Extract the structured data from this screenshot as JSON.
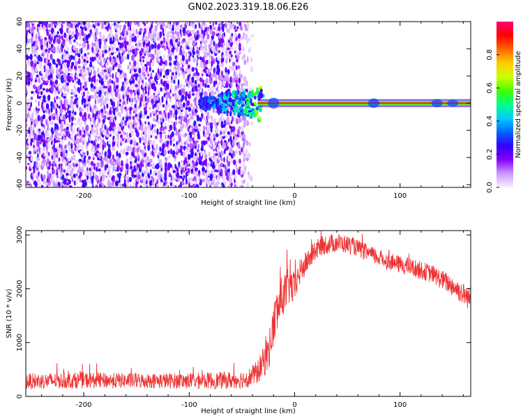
{
  "title": "GN02.2023.319.18.06.E26",
  "colors": {
    "snr_line": "#ee3333",
    "track": "#e01a1a",
    "axis": "#000000",
    "colorbar_stops": [
      "#f8f0ff",
      "#cc99ff",
      "#8800ff",
      "#3300ff",
      "#0066ff",
      "#00ccff",
      "#00ff88",
      "#44ff00",
      "#ccff00",
      "#ffcc00",
      "#ff6600",
      "#ff0000",
      "#ff0077"
    ]
  },
  "chart_data": [
    {
      "type": "heatmap",
      "name": "spectrogram",
      "xlabel": "Height of straight line (km)",
      "ylabel": "Frequency (Hz)",
      "xlim": [
        -255,
        167
      ],
      "ylim": [
        -62,
        60
      ],
      "x_ticks": [
        -200,
        -100,
        0,
        100
      ],
      "x_tick_labels": [
        "-200",
        "-100",
        "0",
        "100"
      ],
      "y_ticks": [
        -60,
        -40,
        -20,
        0,
        20,
        40,
        60
      ],
      "y_tick_labels": [
        "-60",
        "-40",
        "-20",
        "0",
        "20",
        "40",
        "60"
      ],
      "noise_region_x": [
        -255,
        -40
      ],
      "burst_region_x": [
        -90,
        -30
      ],
      "signal_frequency_hz": 0,
      "signal_x_range": [
        -35,
        167
      ],
      "colorbar": {
        "label": "Normalized spectral amplitude",
        "range": [
          0,
          1
        ],
        "ticks": [
          0.0,
          0.2,
          0.4,
          0.6,
          0.8
        ],
        "tick_labels": [
          "0.0",
          "0.2",
          "0.4",
          "0.6",
          "0.8"
        ]
      }
    },
    {
      "type": "line",
      "name": "snr",
      "xlabel": "Height of straight line (km)",
      "ylabel": "SNR (10 * v/v)",
      "xlim": [
        -255,
        167
      ],
      "ylim": [
        0,
        3080
      ],
      "x_ticks": [
        -200,
        -100,
        0,
        100
      ],
      "x_tick_labels": [
        "-200",
        "-100",
        "0",
        "100"
      ],
      "y_ticks": [
        0,
        1000,
        2000,
        3000
      ],
      "y_tick_labels": [
        "0",
        "1000",
        "2000",
        "3000"
      ],
      "x": [
        -255,
        -200,
        -150,
        -100,
        -60,
        -45,
        -35,
        -25,
        -18,
        -12,
        -5,
        0,
        5,
        15,
        25,
        40,
        55,
        70,
        90,
        110,
        130,
        150,
        167
      ],
      "y": [
        280,
        300,
        290,
        290,
        300,
        330,
        450,
        800,
        1500,
        1850,
        2050,
        2000,
        2300,
        2600,
        2800,
        2860,
        2800,
        2650,
        2500,
        2400,
        2280,
        2050,
        1800
      ],
      "noise_amplitude": [
        150,
        150,
        140,
        150,
        160,
        170,
        220,
        350,
        450,
        400,
        350,
        300,
        250,
        200,
        180,
        180,
        160,
        160,
        160,
        170,
        170,
        190,
        220
      ]
    }
  ]
}
